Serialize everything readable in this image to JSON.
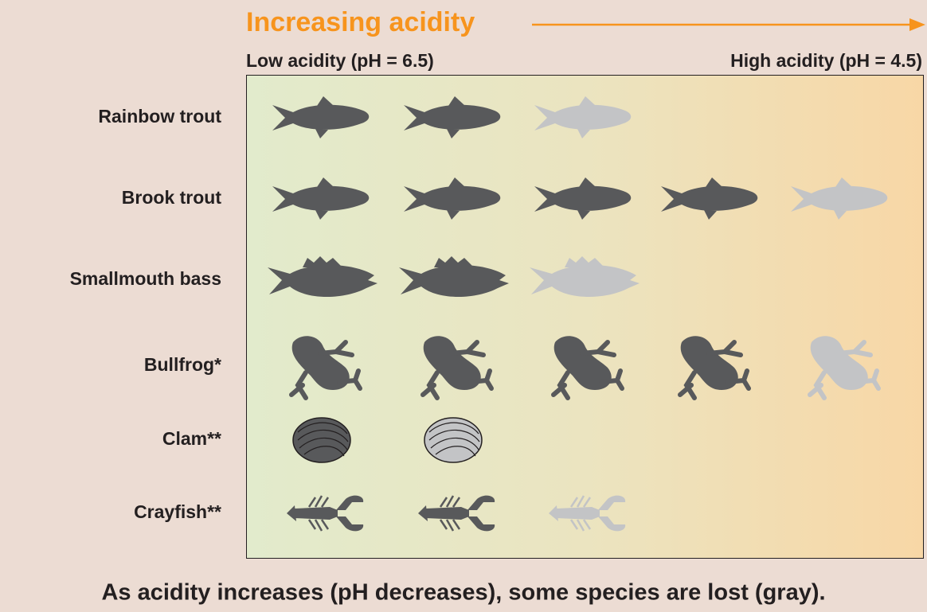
{
  "header": {
    "title": "Increasing acidity",
    "low_label": "Low acidity (pH = 6.5)",
    "high_label": "High acidity (pH = 4.5)"
  },
  "rows": [
    {
      "label": "Rainbow trout",
      "icon": "trout",
      "icons": [
        "#58595b",
        "#58595b",
        "#c3c4c6"
      ]
    },
    {
      "label": "Brook trout",
      "icon": "trout",
      "icons": [
        "#58595b",
        "#58595b",
        "#58595b",
        "#58595b",
        "#c3c4c6"
      ]
    },
    {
      "label": "Smallmouth bass",
      "icon": "bass",
      "icons": [
        "#58595b",
        "#58595b",
        "#c3c4c6"
      ]
    },
    {
      "label": "Bullfrog*",
      "icon": "frog",
      "icons": [
        "#58595b",
        "#58595b",
        "#58595b",
        "#58595b",
        "#c3c4c6"
      ]
    },
    {
      "label": "Clam**",
      "icon": "clam",
      "icons": [
        "#58595b",
        "#c3c4c6"
      ]
    },
    {
      "label": "Crayfish**",
      "icon": "crayfish",
      "icons": [
        "#58595b",
        "#58595b",
        "#c3c4c6"
      ]
    }
  ],
  "footer": "As acidity increases (pH decreases), some species are lost (gray)."
}
